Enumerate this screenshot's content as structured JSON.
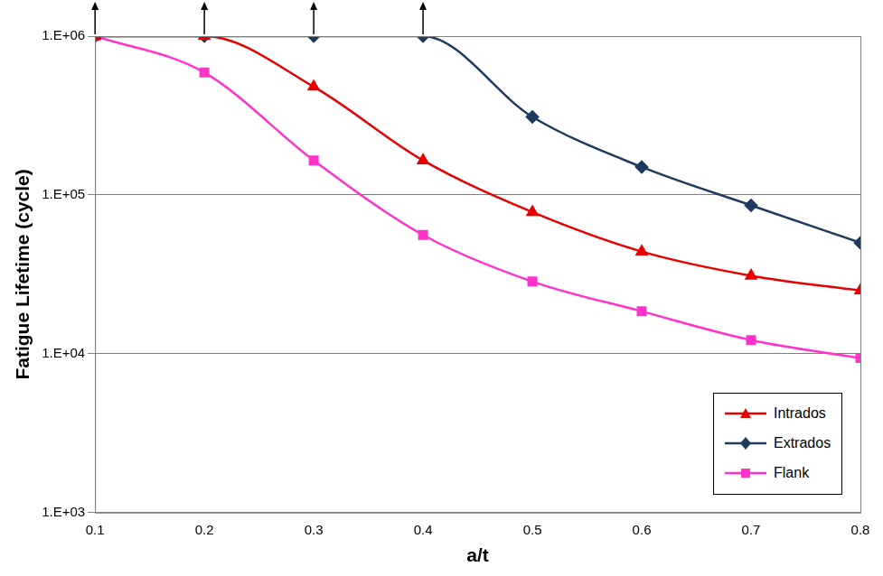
{
  "chart_data": {
    "type": "line",
    "x_label": "a/t",
    "y_label": "Fatigue Lifetime (cycle)",
    "x": [
      0.1,
      0.2,
      0.3,
      0.4,
      0.5,
      0.6,
      0.7,
      0.8
    ],
    "xlim": [
      0.1,
      0.8
    ],
    "xticks": [
      0.1,
      0.2,
      0.3,
      0.4,
      0.5,
      0.6,
      0.7,
      0.8
    ],
    "ylim": [
      1000,
      1000000
    ],
    "yticks": [
      {
        "value": 1000,
        "label": "1.E+03"
      },
      {
        "value": 10000,
        "label": "1.E+04"
      },
      {
        "value": 100000,
        "label": "1.E+05"
      },
      {
        "value": 1000000,
        "label": "1.E+06"
      }
    ],
    "log": "y",
    "grid": true,
    "legend": "lower right",
    "series": [
      {
        "name": "Intrados",
        "color": "#e60000",
        "marker": "triangle",
        "line_style": "solid",
        "values": [
          1000000,
          1000000,
          480000,
          165000,
          78000,
          44000,
          31000,
          25000
        ]
      },
      {
        "name": "Extrados",
        "color": "#1f3a5f",
        "marker": "diamond",
        "line_style": "solid",
        "values": [
          1000000,
          1000000,
          1000000,
          1000000,
          310000,
          150000,
          86000,
          50000
        ]
      },
      {
        "name": "Flank",
        "color": "#ff33cc",
        "marker": "square",
        "line_style": "solid",
        "values": [
          1000000,
          590000,
          165000,
          56000,
          28500,
          18500,
          12200,
          9400
        ]
      }
    ]
  }
}
